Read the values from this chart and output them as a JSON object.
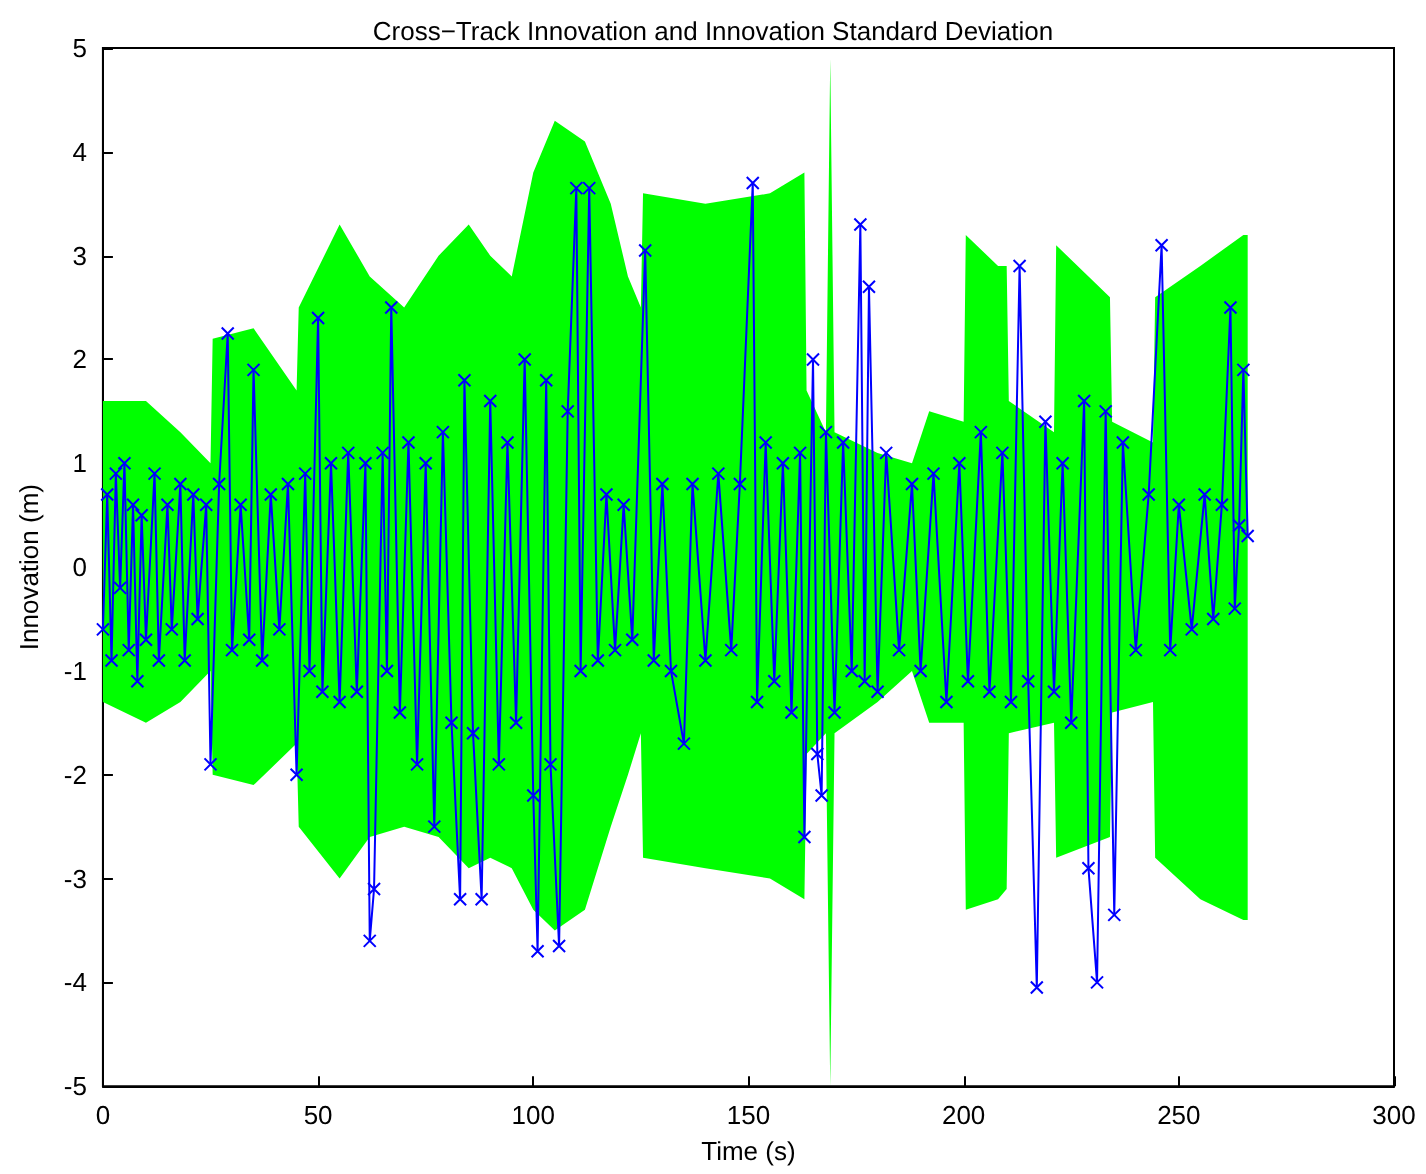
{
  "chart_data": {
    "type": "line",
    "title": "Cross−Track Innovation and Innovation Standard Deviation",
    "xlabel": "Time (s)",
    "ylabel": "Innovation (m)",
    "xlim": [
      0,
      300
    ],
    "xticks": [
      0,
      50,
      100,
      150,
      200,
      250,
      300
    ],
    "ylim": [
      -5,
      5
    ],
    "yticks": [
      -5,
      -4,
      -3,
      -2,
      -1,
      0,
      1,
      2,
      3,
      4,
      5
    ],
    "series": [
      {
        "type": "area",
        "color": "#00ff00",
        "x": [
          0,
          10,
          18,
          25,
          25.5,
          35,
          45,
          45.5,
          55,
          62,
          70,
          78,
          85,
          90,
          95,
          100,
          105,
          112,
          118,
          122,
          125,
          125.5,
          140,
          155,
          163,
          163.5,
          168,
          169,
          170,
          180,
          188,
          192,
          200,
          200.5,
          208,
          210,
          210.5,
          221,
          221.5,
          234,
          234.5,
          244,
          244.5,
          255,
          265,
          266
        ],
        "values": [
          1.6,
          1.6,
          1.3,
          1.0,
          2.2,
          2.3,
          1.7,
          2.5,
          3.3,
          2.8,
          2.5,
          3.0,
          3.3,
          3.0,
          2.8,
          3.8,
          4.3,
          4.1,
          3.5,
          2.8,
          2.5,
          3.6,
          3.5,
          3.6,
          3.8,
          1.7,
          1.3,
          4.9,
          1.3,
          1.1,
          1.0,
          1.5,
          1.4,
          3.2,
          2.9,
          2.9,
          1.6,
          1.3,
          3.1,
          2.6,
          1.4,
          1.2,
          2.6,
          2.9,
          3.2,
          3.2
        ]
      },
      {
        "type": "area",
        "color": "#00ff00",
        "x": [
          0,
          10,
          18,
          25,
          25.5,
          35,
          45,
          45.5,
          55,
          62,
          70,
          78,
          85,
          90,
          95,
          100,
          105,
          112,
          118,
          122,
          125,
          125.5,
          140,
          155,
          163,
          163.5,
          168,
          169,
          170,
          180,
          188,
          192,
          200,
          200.5,
          208,
          210,
          210.5,
          221,
          221.5,
          234,
          234.5,
          244,
          244.5,
          255,
          265,
          266
        ],
        "values": [
          -1.3,
          -1.5,
          -1.3,
          -1.0,
          -2.0,
          -2.1,
          -1.7,
          -2.5,
          -3.0,
          -2.6,
          -2.5,
          -2.6,
          -2.9,
          -2.8,
          -2.9,
          -3.3,
          -3.5,
          -3.3,
          -2.5,
          -2.0,
          -1.6,
          -2.8,
          -2.9,
          -3.0,
          -3.2,
          -1.8,
          -1.6,
          -5.0,
          -1.6,
          -1.3,
          -1.0,
          -1.5,
          -1.5,
          -3.3,
          -3.2,
          -3.1,
          -1.6,
          -1.5,
          -2.8,
          -2.6,
          -1.4,
          -1.3,
          -2.8,
          -3.2,
          -3.4,
          -3.4
        ]
      },
      {
        "color": "#0000ff",
        "marker": "cross",
        "x": [
          0,
          1,
          2,
          3,
          4,
          5,
          6,
          7,
          8,
          9,
          10,
          12,
          13,
          15,
          16,
          18,
          19,
          21,
          22,
          24,
          25,
          27,
          29,
          30,
          32,
          34,
          35,
          37,
          39,
          41,
          43,
          45,
          47,
          48,
          50,
          51,
          53,
          55,
          57,
          59,
          61,
          62,
          63,
          65,
          66,
          67,
          69,
          71,
          73,
          75,
          77,
          79,
          81,
          83,
          84,
          86,
          88,
          90,
          92,
          94,
          96,
          98,
          100,
          101,
          103,
          104,
          106,
          108,
          110,
          111,
          113,
          115,
          117,
          119,
          121,
          123,
          126,
          128,
          130,
          132,
          135,
          137,
          140,
          143,
          146,
          148,
          151,
          152,
          154,
          156,
          158,
          160,
          162,
          163,
          165,
          166,
          167,
          168,
          170,
          172,
          174,
          176,
          177,
          178,
          180,
          182,
          185,
          188,
          190,
          193,
          196,
          199,
          201,
          204,
          206,
          209,
          211,
          213,
          215,
          217,
          219,
          221,
          223,
          225,
          228,
          229,
          231,
          233,
          235,
          237,
          240,
          243,
          246,
          248,
          250,
          253,
          256,
          258,
          260,
          262,
          263,
          264,
          265,
          266
        ],
        "values": [
          -0.6,
          0.7,
          -0.9,
          0.9,
          -0.2,
          1.0,
          -0.8,
          0.6,
          -1.1,
          0.5,
          -0.7,
          0.9,
          -0.9,
          0.6,
          -0.6,
          0.8,
          -0.9,
          0.7,
          -0.5,
          0.6,
          -1.9,
          0.8,
          2.25,
          -0.8,
          0.6,
          -0.7,
          1.9,
          -0.9,
          0.7,
          -0.6,
          0.8,
          -2.0,
          0.9,
          -1.0,
          2.4,
          -1.2,
          1.0,
          -1.3,
          1.1,
          -1.2,
          1.0,
          -3.6,
          -3.1,
          1.1,
          -1.0,
          2.5,
          -1.4,
          1.2,
          -1.9,
          1.0,
          -2.5,
          1.3,
          -1.5,
          -3.2,
          1.8,
          -1.6,
          -3.2,
          1.6,
          -1.9,
          1.2,
          -1.5,
          2.0,
          -2.2,
          -3.7,
          1.8,
          -1.9,
          -3.65,
          1.5,
          3.65,
          -1.0,
          3.65,
          -0.9,
          0.7,
          -0.8,
          0.6,
          -0.7,
          3.05,
          -0.9,
          0.8,
          -1.0,
          -1.7,
          0.8,
          -0.9,
          0.9,
          -0.8,
          0.8,
          3.7,
          -1.3,
          1.2,
          -1.1,
          1.0,
          -1.4,
          1.1,
          -2.6,
          2.0,
          -1.8,
          -2.2,
          1.3,
          -1.4,
          1.2,
          -1.0,
          3.3,
          -1.1,
          2.7,
          -1.2,
          1.1,
          -0.8,
          0.8,
          -1.0,
          0.9,
          -1.3,
          1.0,
          -1.1,
          1.3,
          -1.2,
          1.1,
          -1.3,
          2.9,
          -1.1,
          -4.05,
          1.4,
          -1.2,
          1.0,
          -1.5,
          1.6,
          -2.9,
          -4.0,
          1.5,
          -3.35,
          1.2,
          -0.8,
          0.7,
          3.1,
          -0.8,
          0.6,
          -0.6,
          0.7,
          -0.5,
          0.6,
          2.5,
          -0.4,
          0.4,
          1.9,
          0.3
        ]
      }
    ]
  }
}
